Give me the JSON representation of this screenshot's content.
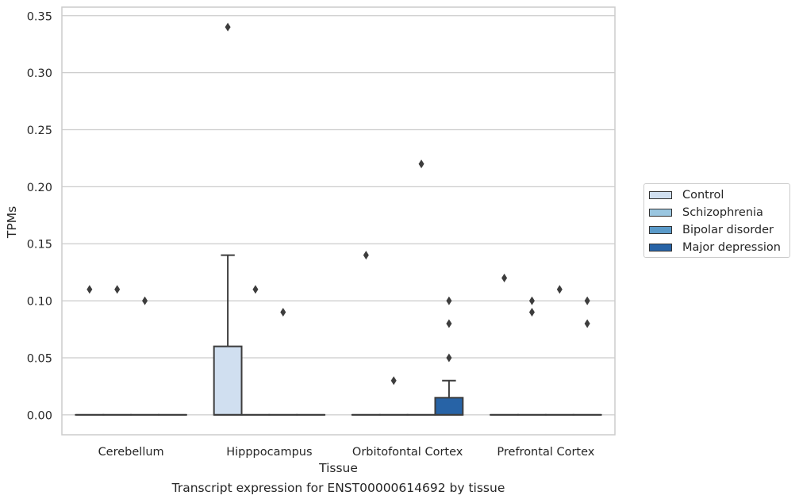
{
  "chart_data": {
    "type": "box",
    "title": "",
    "caption": "Transcript expression for ENST00000614692 by tissue",
    "xlabel": "Tissue",
    "ylabel": "TPMs",
    "ylim": [
      -0.0175,
      0.3575
    ],
    "yticks": [
      "0.00",
      "0.05",
      "0.10",
      "0.15",
      "0.20",
      "0.25",
      "0.30",
      "0.35"
    ],
    "ytick_values": [
      0,
      0.05,
      0.1,
      0.15,
      0.2,
      0.25,
      0.3,
      0.35
    ],
    "categories": [
      "Cerebellum",
      "Hipppocampus",
      "Orbitofontal Cortex",
      "Prefrontal Cortex"
    ],
    "grid": true,
    "legend_position": "right",
    "series": [
      {
        "name": "Control",
        "color": "#d0dff0",
        "boxes": [
          {
            "q1": 0,
            "median": 0,
            "q3": 0,
            "whisker_low": 0,
            "whisker_high": 0,
            "outliers": [
              0.11
            ]
          },
          {
            "q1": 0,
            "median": 0,
            "q3": 0.06,
            "whisker_low": 0,
            "whisker_high": 0.14,
            "outliers": [
              0.34
            ]
          },
          {
            "q1": 0,
            "median": 0,
            "q3": 0,
            "whisker_low": 0,
            "whisker_high": 0,
            "outliers": [
              0.14
            ]
          },
          {
            "q1": 0,
            "median": 0,
            "q3": 0,
            "whisker_low": 0,
            "whisker_high": 0,
            "outliers": [
              0.12
            ]
          }
        ]
      },
      {
        "name": "Schizophrenia",
        "color": "#9ac6e0",
        "boxes": [
          {
            "q1": 0,
            "median": 0,
            "q3": 0,
            "whisker_low": 0,
            "whisker_high": 0,
            "outliers": [
              0.11
            ]
          },
          {
            "q1": 0,
            "median": 0,
            "q3": 0,
            "whisker_low": 0,
            "whisker_high": 0,
            "outliers": [
              0.11
            ]
          },
          {
            "q1": 0,
            "median": 0,
            "q3": 0,
            "whisker_low": 0,
            "whisker_high": 0,
            "outliers": [
              0.03
            ]
          },
          {
            "q1": 0,
            "median": 0,
            "q3": 0,
            "whisker_low": 0,
            "whisker_high": 0,
            "outliers": [
              0.1,
              0.09
            ]
          }
        ]
      },
      {
        "name": "Bipolar disorder",
        "color": "#5a9ac9",
        "boxes": [
          {
            "q1": 0,
            "median": 0,
            "q3": 0,
            "whisker_low": 0,
            "whisker_high": 0,
            "outliers": [
              0.1
            ]
          },
          {
            "q1": 0,
            "median": 0,
            "q3": 0,
            "whisker_low": 0,
            "whisker_high": 0,
            "outliers": [
              0.09
            ]
          },
          {
            "q1": 0,
            "median": 0,
            "q3": 0,
            "whisker_low": 0,
            "whisker_high": 0,
            "outliers": [
              0.22
            ]
          },
          {
            "q1": 0,
            "median": 0,
            "q3": 0,
            "whisker_low": 0,
            "whisker_high": 0,
            "outliers": [
              0.11
            ]
          }
        ]
      },
      {
        "name": "Major depression",
        "color": "#2763a6",
        "boxes": [
          {
            "q1": 0,
            "median": 0,
            "q3": 0,
            "whisker_low": 0,
            "whisker_high": 0,
            "outliers": []
          },
          {
            "q1": 0,
            "median": 0,
            "q3": 0,
            "whisker_low": 0,
            "whisker_high": 0,
            "outliers": []
          },
          {
            "q1": 0,
            "median": 0,
            "q3": 0.015,
            "whisker_low": 0,
            "whisker_high": 0.03,
            "outliers": [
              0.1,
              0.08,
              0.05
            ]
          },
          {
            "q1": 0,
            "median": 0,
            "q3": 0,
            "whisker_low": 0,
            "whisker_high": 0,
            "outliers": [
              0.1,
              0.08
            ]
          }
        ]
      }
    ]
  },
  "legend": {
    "items": [
      {
        "label": "Control",
        "color": "#d0dff0"
      },
      {
        "label": "Schizophrenia",
        "color": "#9ac6e0"
      },
      {
        "label": "Bipolar disorder",
        "color": "#5a9ac9"
      },
      {
        "label": "Major depression",
        "color": "#2763a6"
      }
    ]
  }
}
